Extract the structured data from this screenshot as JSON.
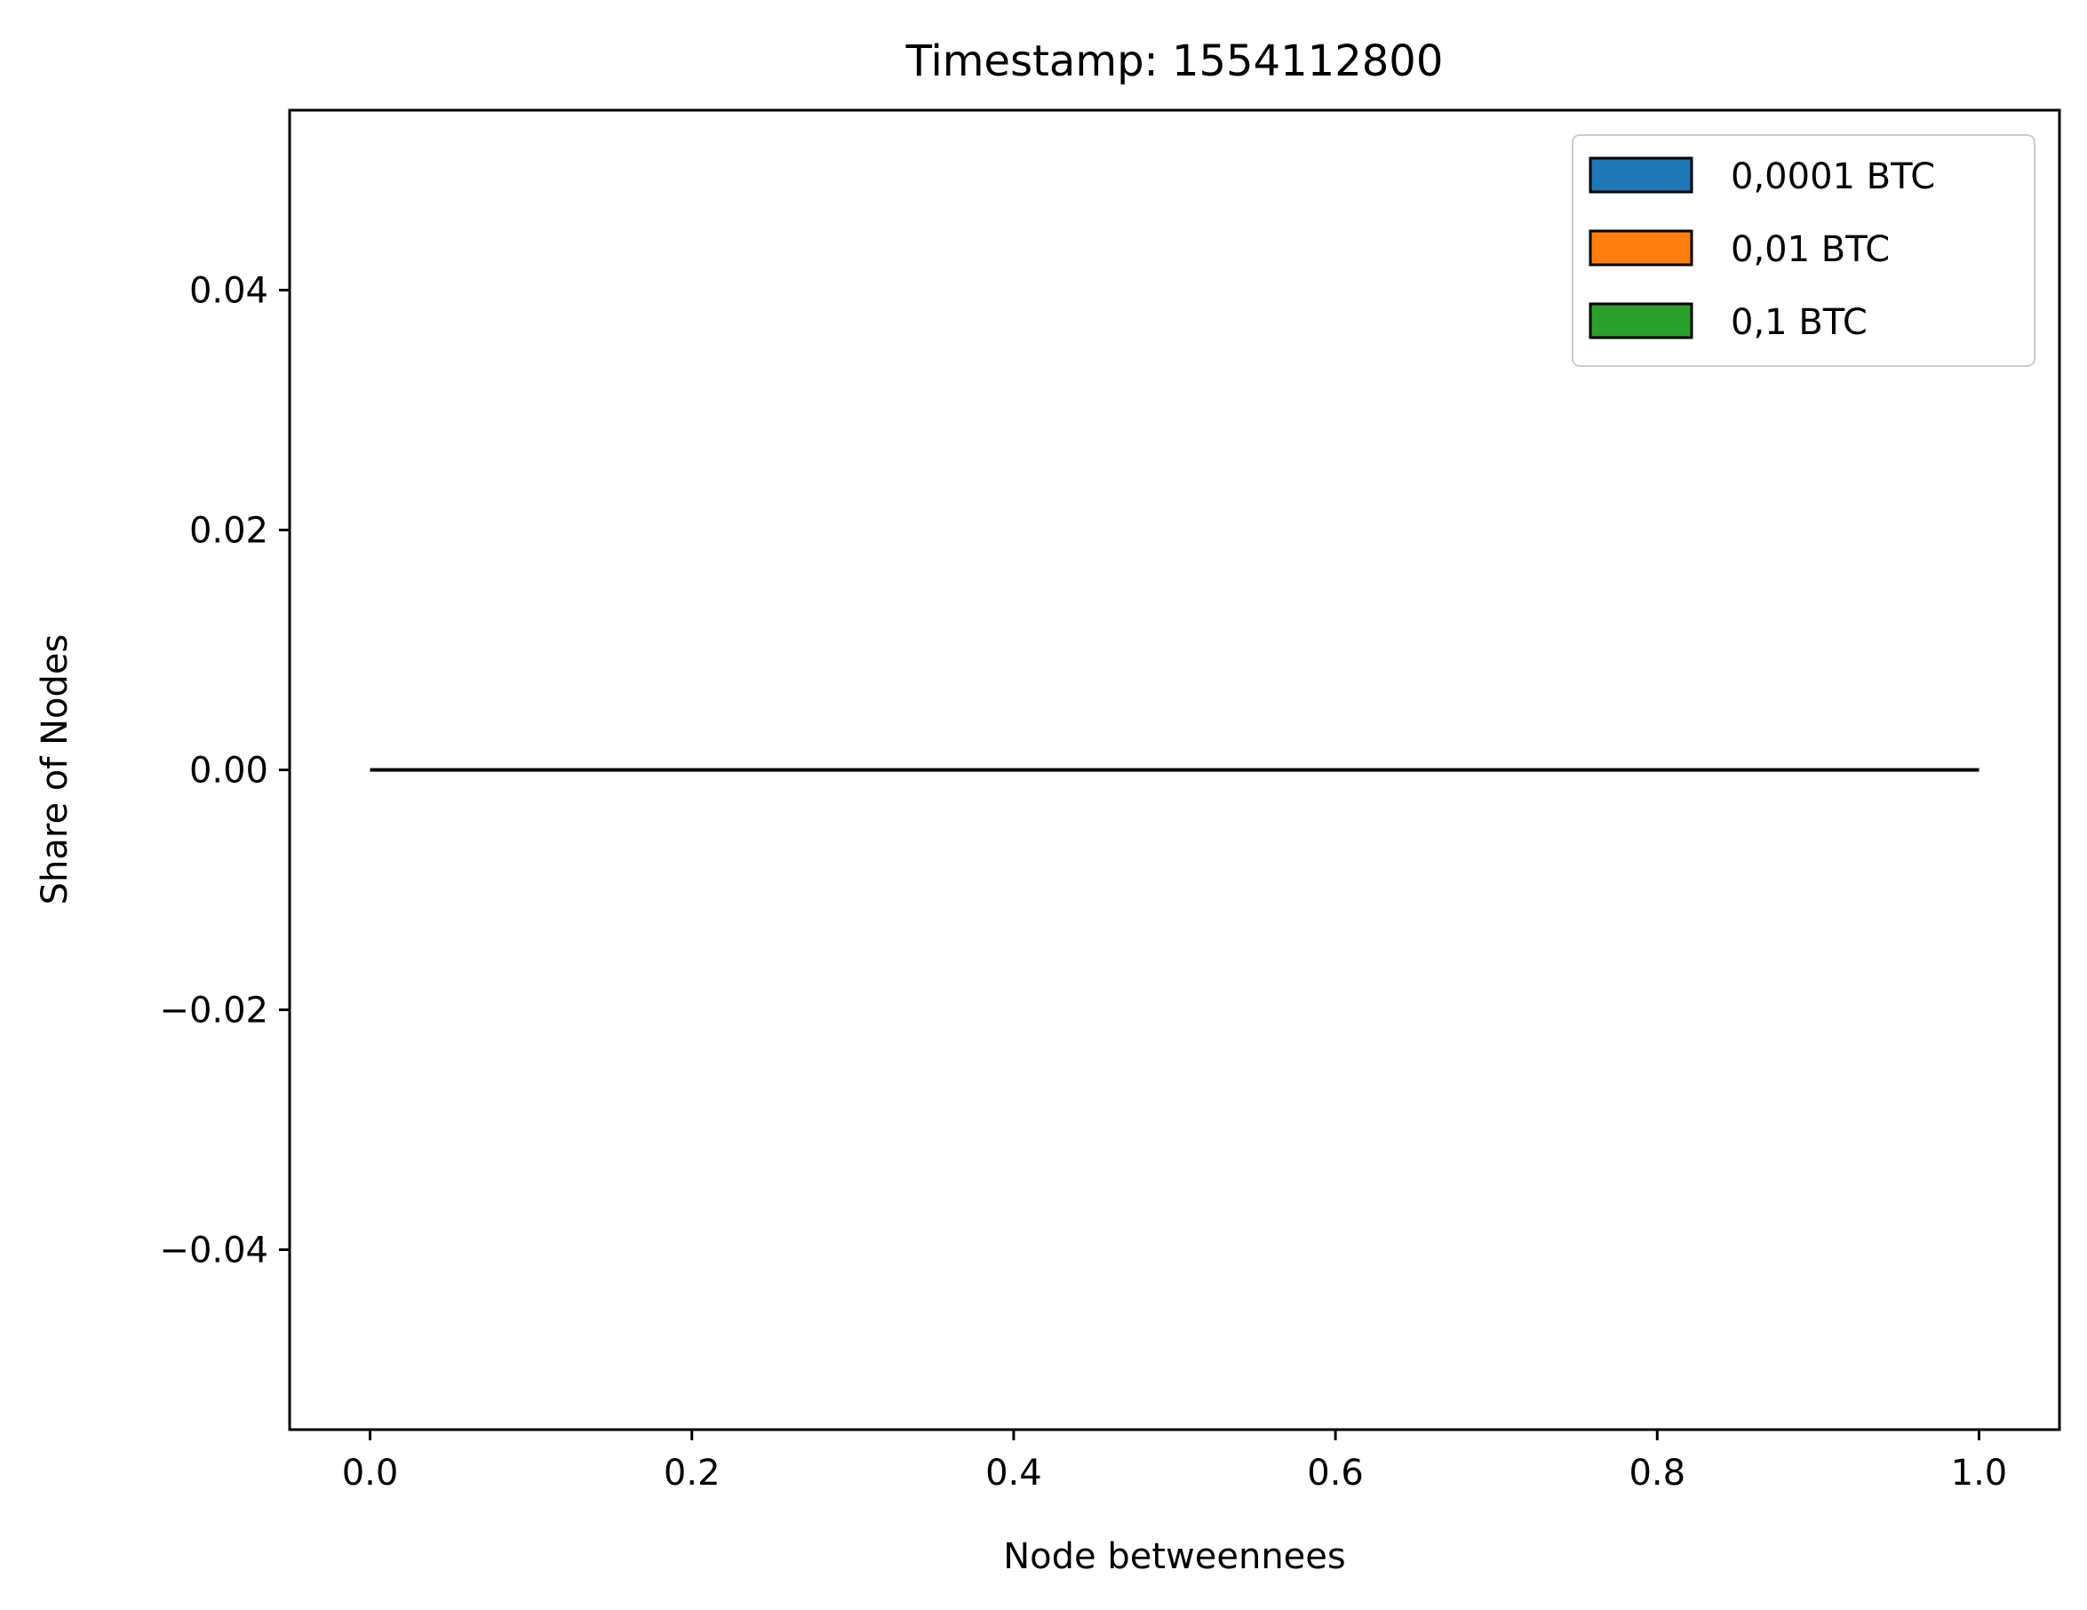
{
  "chart_data": {
    "type": "histogram",
    "title": "Timestamp: 1554112800",
    "xlabel": "Node betweennees",
    "ylabel": "Share of Nodes",
    "xlim": [
      -0.05,
      1.05
    ],
    "ylim": [
      -0.055,
      0.055
    ],
    "x_ticks": [
      0.0,
      0.2,
      0.4,
      0.6,
      0.8,
      1.0
    ],
    "x_tick_labels": [
      "0.0",
      "0.2",
      "0.4",
      "0.6",
      "0.8",
      "1.0"
    ],
    "y_ticks": [
      0.04,
      0.02,
      0.0,
      -0.02,
      -0.04
    ],
    "y_tick_labels": [
      "0.04",
      "0.02",
      "0.00",
      "−0.02",
      "−0.04"
    ],
    "grid": false,
    "legend_position": "top-right",
    "series": [
      {
        "name": "0,0001 BTC",
        "color": "#1f77b4",
        "x_range": [
          0.0,
          1.0
        ],
        "values": [
          0.0
        ]
      },
      {
        "name": "0,01 BTC",
        "color": "#ff7f0e",
        "x_range": [
          0.0,
          1.0
        ],
        "values": [
          0.0
        ]
      },
      {
        "name": "0,1 BTC",
        "color": "#2ca02c",
        "x_range": [
          0.0,
          1.0
        ],
        "values": [
          0.0
        ]
      }
    ]
  }
}
